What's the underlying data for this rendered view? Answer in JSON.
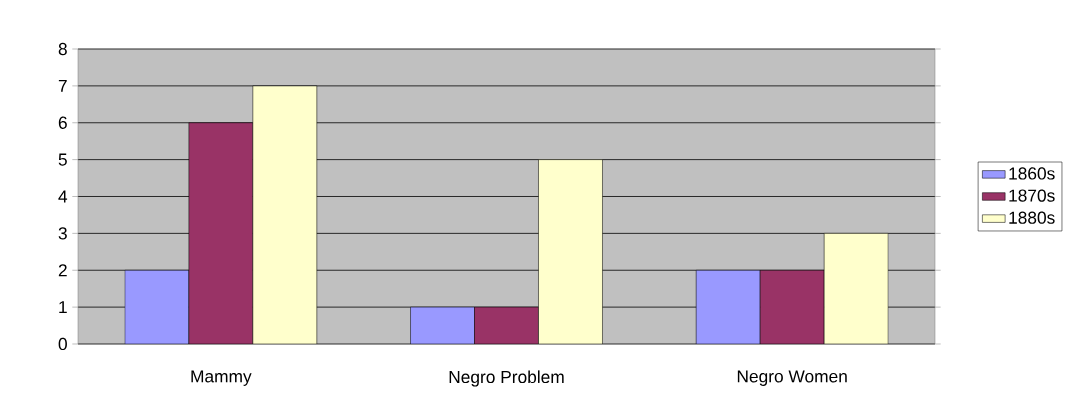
{
  "chart_data": {
    "type": "bar",
    "categories": [
      "Mammy",
      "Negro Problem",
      "Negro Women"
    ],
    "series": [
      {
        "name": "1860s",
        "color": "#9999ff",
        "values": [
          2,
          1,
          2
        ]
      },
      {
        "name": "1870s",
        "color": "#993366",
        "values": [
          6,
          1,
          2
        ]
      },
      {
        "name": "1880s",
        "color": "#ffffcc",
        "values": [
          7,
          5,
          3
        ]
      }
    ],
    "ylim": [
      0,
      8
    ],
    "yticks": [
      0,
      1,
      2,
      3,
      4,
      5,
      6,
      7,
      8
    ],
    "grid": "y",
    "legend": "right"
  }
}
